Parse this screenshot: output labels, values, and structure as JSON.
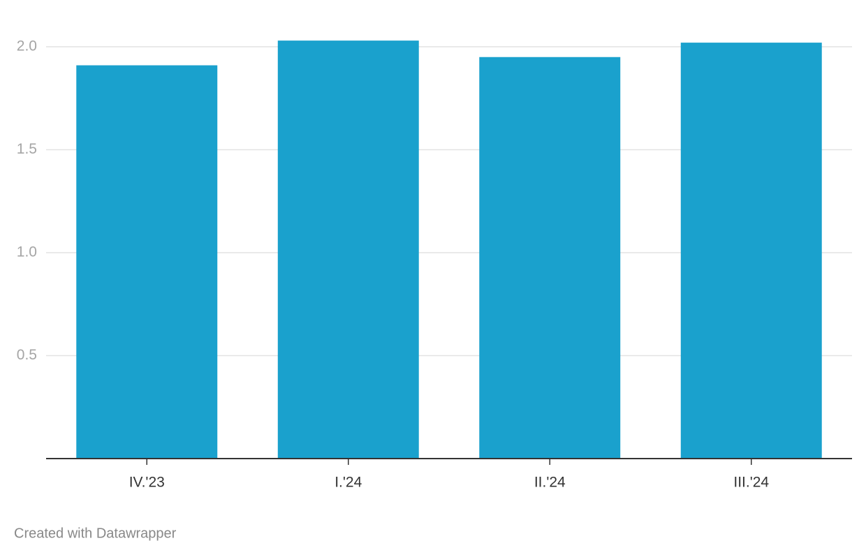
{
  "chart_data": {
    "type": "bar",
    "categories": [
      "IV.'23",
      "I.'24",
      "II.'24",
      "III.'24"
    ],
    "values": [
      1.91,
      2.03,
      1.95,
      2.02
    ],
    "color": "#1aa1cd",
    "ylim": [
      0,
      2.1
    ],
    "yticks": [
      {
        "value": 2,
        "label": "2.0"
      },
      {
        "value": 1.5,
        "label": "1.5"
      },
      {
        "value": 1,
        "label": "1.0"
      },
      0.5
    ],
    "grid": true
  },
  "footer": "Created with Datawrapper"
}
